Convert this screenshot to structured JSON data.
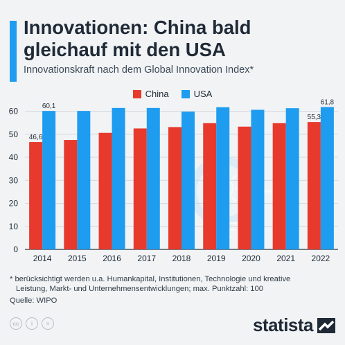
{
  "header": {
    "title": "Innovationen: China bald gleichauf mit den USA",
    "subtitle": "Innovationskraft nach dem Global Innovation Index*"
  },
  "legend": [
    {
      "name": "China",
      "color": "#e8392d"
    },
    {
      "name": "USA",
      "color": "#1e9cf0"
    }
  ],
  "chart_data": {
    "type": "bar",
    "categories": [
      "2014",
      "2015",
      "2016",
      "2017",
      "2018",
      "2019",
      "2020",
      "2021",
      "2022"
    ],
    "series": [
      {
        "name": "China",
        "color": "#e8392d",
        "values": [
          46.6,
          47.5,
          50.6,
          52.5,
          53.1,
          54.8,
          53.3,
          54.8,
          55.3
        ]
      },
      {
        "name": "USA",
        "color": "#1e9cf0",
        "values": [
          60.1,
          60.1,
          61.4,
          61.4,
          59.8,
          61.7,
          60.6,
          61.3,
          61.8
        ]
      }
    ],
    "data_labels": [
      {
        "series": "China",
        "category": "2014",
        "text": "46,6"
      },
      {
        "series": "USA",
        "category": "2014",
        "text": "60,1"
      },
      {
        "series": "China",
        "category": "2022",
        "text": "55,3"
      },
      {
        "series": "USA",
        "category": "2022",
        "text": "61,8"
      }
    ],
    "y_ticks": [
      0,
      10,
      20,
      30,
      40,
      50,
      60
    ],
    "ylim": [
      0,
      65
    ],
    "grid": true,
    "legend_position": "top-center"
  },
  "footnote": {
    "line1": "* berücksichtigt werden u.a. Humankapital, Institutionen, Technologie und kreative",
    "line2": "Leistung, Markt- und Unternehmensentwicklungen; max. Punktzahl: 100"
  },
  "source": "Quelle: WIPO",
  "license_icons": [
    {
      "icon": "cc-icon",
      "glyph": "cc"
    },
    {
      "icon": "attribution-icon",
      "glyph": "i"
    },
    {
      "icon": "no-derivatives-icon",
      "glyph": "="
    }
  ],
  "brand": {
    "name": "statista"
  }
}
